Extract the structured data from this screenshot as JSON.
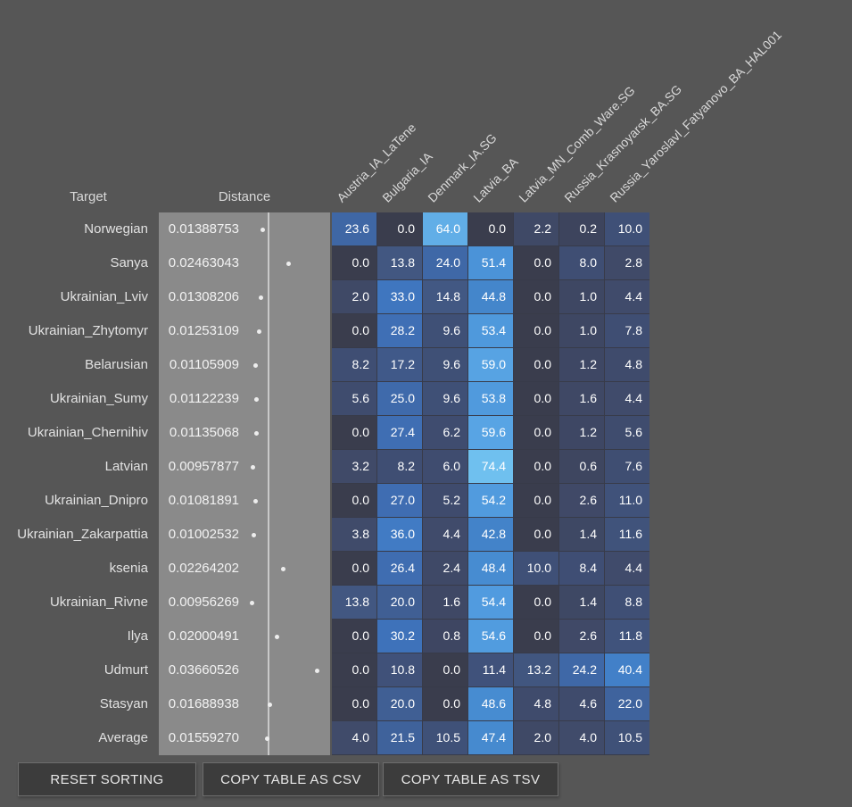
{
  "header": {
    "target_label": "Target",
    "distance_label": "Distance"
  },
  "columns": [
    "Austria_IA_LaTene",
    "Bulgaria_IA",
    "Denmark_IA.SG",
    "Latvia_BA",
    "Latvia_MN_Comb_Ware.SG",
    "Russia_Krasnoyarsk_BA.SG",
    "Russia_Yaroslavl_Fatyanovo_BA_HAL001"
  ],
  "rows": [
    {
      "target": "Norwegian",
      "distance": "0.01388753",
      "values": [
        23.6,
        0.0,
        64.0,
        0.0,
        2.2,
        0.2,
        10.0
      ]
    },
    {
      "target": "Sanya",
      "distance": "0.02463043",
      "values": [
        0.0,
        13.8,
        24.0,
        51.4,
        0.0,
        8.0,
        2.8
      ]
    },
    {
      "target": "Ukrainian_Lviv",
      "distance": "0.01308206",
      "values": [
        2.0,
        33.0,
        14.8,
        44.8,
        0.0,
        1.0,
        4.4
      ]
    },
    {
      "target": "Ukrainian_Zhytomyr",
      "distance": "0.01253109",
      "values": [
        0.0,
        28.2,
        9.6,
        53.4,
        0.0,
        1.0,
        7.8
      ]
    },
    {
      "target": "Belarusian",
      "distance": "0.01105909",
      "values": [
        8.2,
        17.2,
        9.6,
        59.0,
        0.0,
        1.2,
        4.8
      ]
    },
    {
      "target": "Ukrainian_Sumy",
      "distance": "0.01122239",
      "values": [
        5.6,
        25.0,
        9.6,
        53.8,
        0.0,
        1.6,
        4.4
      ]
    },
    {
      "target": "Ukrainian_Chernihiv",
      "distance": "0.01135068",
      "values": [
        0.0,
        27.4,
        6.2,
        59.6,
        0.0,
        1.2,
        5.6
      ]
    },
    {
      "target": "Latvian",
      "distance": "0.00957877",
      "values": [
        3.2,
        8.2,
        6.0,
        74.4,
        0.0,
        0.6,
        7.6
      ]
    },
    {
      "target": "Ukrainian_Dnipro",
      "distance": "0.01081891",
      "values": [
        0.0,
        27.0,
        5.2,
        54.2,
        0.0,
        2.6,
        11.0
      ]
    },
    {
      "target": "Ukrainian_Zakarpattia",
      "distance": "0.01002532",
      "values": [
        3.8,
        36.0,
        4.4,
        42.8,
        0.0,
        1.4,
        11.6
      ]
    },
    {
      "target": "ksenia",
      "distance": "0.02264202",
      "values": [
        0.0,
        26.4,
        2.4,
        48.4,
        10.0,
        8.4,
        4.4
      ]
    },
    {
      "target": "Ukrainian_Rivne",
      "distance": "0.00956269",
      "values": [
        13.8,
        20.0,
        1.6,
        54.4,
        0.0,
        1.4,
        8.8
      ]
    },
    {
      "target": "Ilya",
      "distance": "0.02000491",
      "values": [
        0.0,
        30.2,
        0.8,
        54.6,
        0.0,
        2.6,
        11.8
      ]
    },
    {
      "target": "Udmurt",
      "distance": "0.03660526",
      "values": [
        0.0,
        10.8,
        0.0,
        11.4,
        13.2,
        24.2,
        40.4
      ]
    },
    {
      "target": "Stasyan",
      "distance": "0.01688938",
      "values": [
        0.0,
        20.0,
        0.0,
        48.6,
        4.8,
        4.6,
        22.0
      ]
    },
    {
      "target": "Average",
      "distance": "0.01559270",
      "values": [
        4.0,
        21.5,
        10.5,
        47.4,
        2.0,
        4.0,
        10.5
      ]
    }
  ],
  "toolbar": {
    "reset_label": "RESET SORTING",
    "copy_csv_label": "COPY TABLE AS CSV",
    "copy_tsv_label": "COPY TABLE AS TSV"
  },
  "colors": {
    "page_bg": "#565656",
    "distance_bar_bg": "#8A8A8A",
    "average_marker_line": "#C9C9C9",
    "distance_dot": "#EDEDED",
    "cell_text": "#FFFFFF",
    "label_text": "#E2E2E2",
    "header_text": "#D9D9D9",
    "heatmap_gap": "#383B49",
    "button_bg": "#3C3C3C",
    "button_border": "#6E6E6E",
    "button_text": "#E8E8E8",
    "heatmap_ramp": [
      [
        0,
        "#3A3D4D"
      ],
      [
        0.15,
        "#3D445D"
      ],
      [
        1,
        "#3E4763"
      ],
      [
        3,
        "#404A68"
      ],
      [
        6,
        "#3F4C6F"
      ],
      [
        10,
        "#3F5077"
      ],
      [
        14,
        "#425781"
      ],
      [
        18,
        "#405A8B"
      ],
      [
        22,
        "#3F639D"
      ],
      [
        26,
        "#3F6CB0"
      ],
      [
        31,
        "#3E73BC"
      ],
      [
        37,
        "#417CC6"
      ],
      [
        44,
        "#4485CA"
      ],
      [
        49,
        "#478DD2"
      ],
      [
        55,
        "#529DE0"
      ],
      [
        60,
        "#58A5E4"
      ],
      [
        65,
        "#63B0E8"
      ],
      [
        70,
        "#69B9EC"
      ],
      [
        76,
        "#71C3F0"
      ],
      [
        100,
        "#8FD9F8"
      ]
    ]
  }
}
